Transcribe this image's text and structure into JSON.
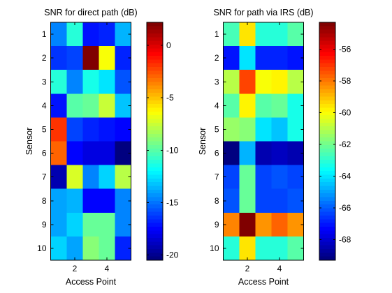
{
  "chart_data": [
    {
      "type": "heatmap",
      "title": "SNR for direct path (dB)",
      "xlabel": "Access Point",
      "ylabel": "Sensor",
      "x": [
        1,
        2,
        3,
        4,
        5
      ],
      "y": [
        1,
        2,
        3,
        4,
        5,
        6,
        7,
        8,
        9,
        10
      ],
      "x_ticks": [
        2,
        4
      ],
      "y_ticks": [
        1,
        2,
        3,
        4,
        5,
        6,
        7,
        8,
        9,
        10
      ],
      "y_axis_reversed": true,
      "grid": false,
      "colormap": "jet",
      "values": [
        [
          -14.6,
          -11.0,
          -17.3,
          -16.9,
          -13.5
        ],
        [
          -16.5,
          -16.0,
          2.2,
          -6.6,
          -16.9
        ],
        [
          -11.0,
          -14.6,
          -11.4,
          -12.5,
          -15.7
        ],
        [
          -17.3,
          -10.1,
          -9.7,
          -7.4,
          -13.1
        ],
        [
          -2.0,
          -16.0,
          -16.9,
          -17.0,
          -17.4
        ],
        [
          -3.0,
          -17.4,
          -18.2,
          -18.3,
          -20.5
        ],
        [
          -19.3,
          -7.3,
          -14.8,
          -12.8,
          -8.0
        ],
        [
          -13.9,
          -13.5,
          -17.6,
          -17.6,
          -14.6
        ],
        [
          -13.9,
          -12.8,
          -9.7,
          -9.7,
          -14.8
        ],
        [
          -12.8,
          -14.0,
          -8.9,
          -9.7,
          -16.9
        ]
      ],
      "colorbar": {
        "range": [
          -20.5,
          2.2
        ],
        "ticks": [
          0,
          -5,
          -10,
          -15,
          -20
        ]
      }
    },
    {
      "type": "heatmap",
      "title": "SNR for path via IRS (dB)",
      "xlabel": "Access Point",
      "ylabel": "Sensor",
      "x": [
        1,
        2,
        3,
        4,
        5
      ],
      "y": [
        1,
        2,
        3,
        4,
        5,
        6,
        7,
        8,
        9,
        10
      ],
      "x_ticks": [
        2,
        4
      ],
      "y_ticks": [
        1,
        2,
        3,
        4,
        5,
        6,
        7,
        8,
        9,
        10
      ],
      "y_axis_reversed": true,
      "grid": false,
      "colormap": "jet",
      "values": [
        [
          -62.7,
          -59.5,
          -63.0,
          -63.0,
          -62.4
        ],
        [
          -67.0,
          -64.0,
          -66.9,
          -66.9,
          -67.0
        ],
        [
          -61.0,
          -57.3,
          -60.1,
          -59.7,
          -60.9
        ],
        [
          -62.5,
          -59.7,
          -62.4,
          -62.2,
          -63.3
        ],
        [
          -61.4,
          -61.8,
          -64.0,
          -64.4,
          -63.3
        ],
        [
          -69.3,
          -64.8,
          -68.4,
          -68.2,
          -68.5
        ],
        [
          -66.3,
          -62.2,
          -66.3,
          -66.1,
          -66.4
        ],
        [
          -66.1,
          -62.2,
          -66.3,
          -66.3,
          -66.1
        ],
        [
          -58.2,
          -54.3,
          -58.4,
          -57.7,
          -58.4
        ],
        [
          -63.1,
          -59.5,
          -63.0,
          -63.0,
          -62.5
        ]
      ],
      "colorbar": {
        "range": [
          -69.3,
          -54.3
        ],
        "ticks": [
          -56,
          -58,
          -60,
          -62,
          -64,
          -66,
          -68
        ]
      }
    }
  ]
}
